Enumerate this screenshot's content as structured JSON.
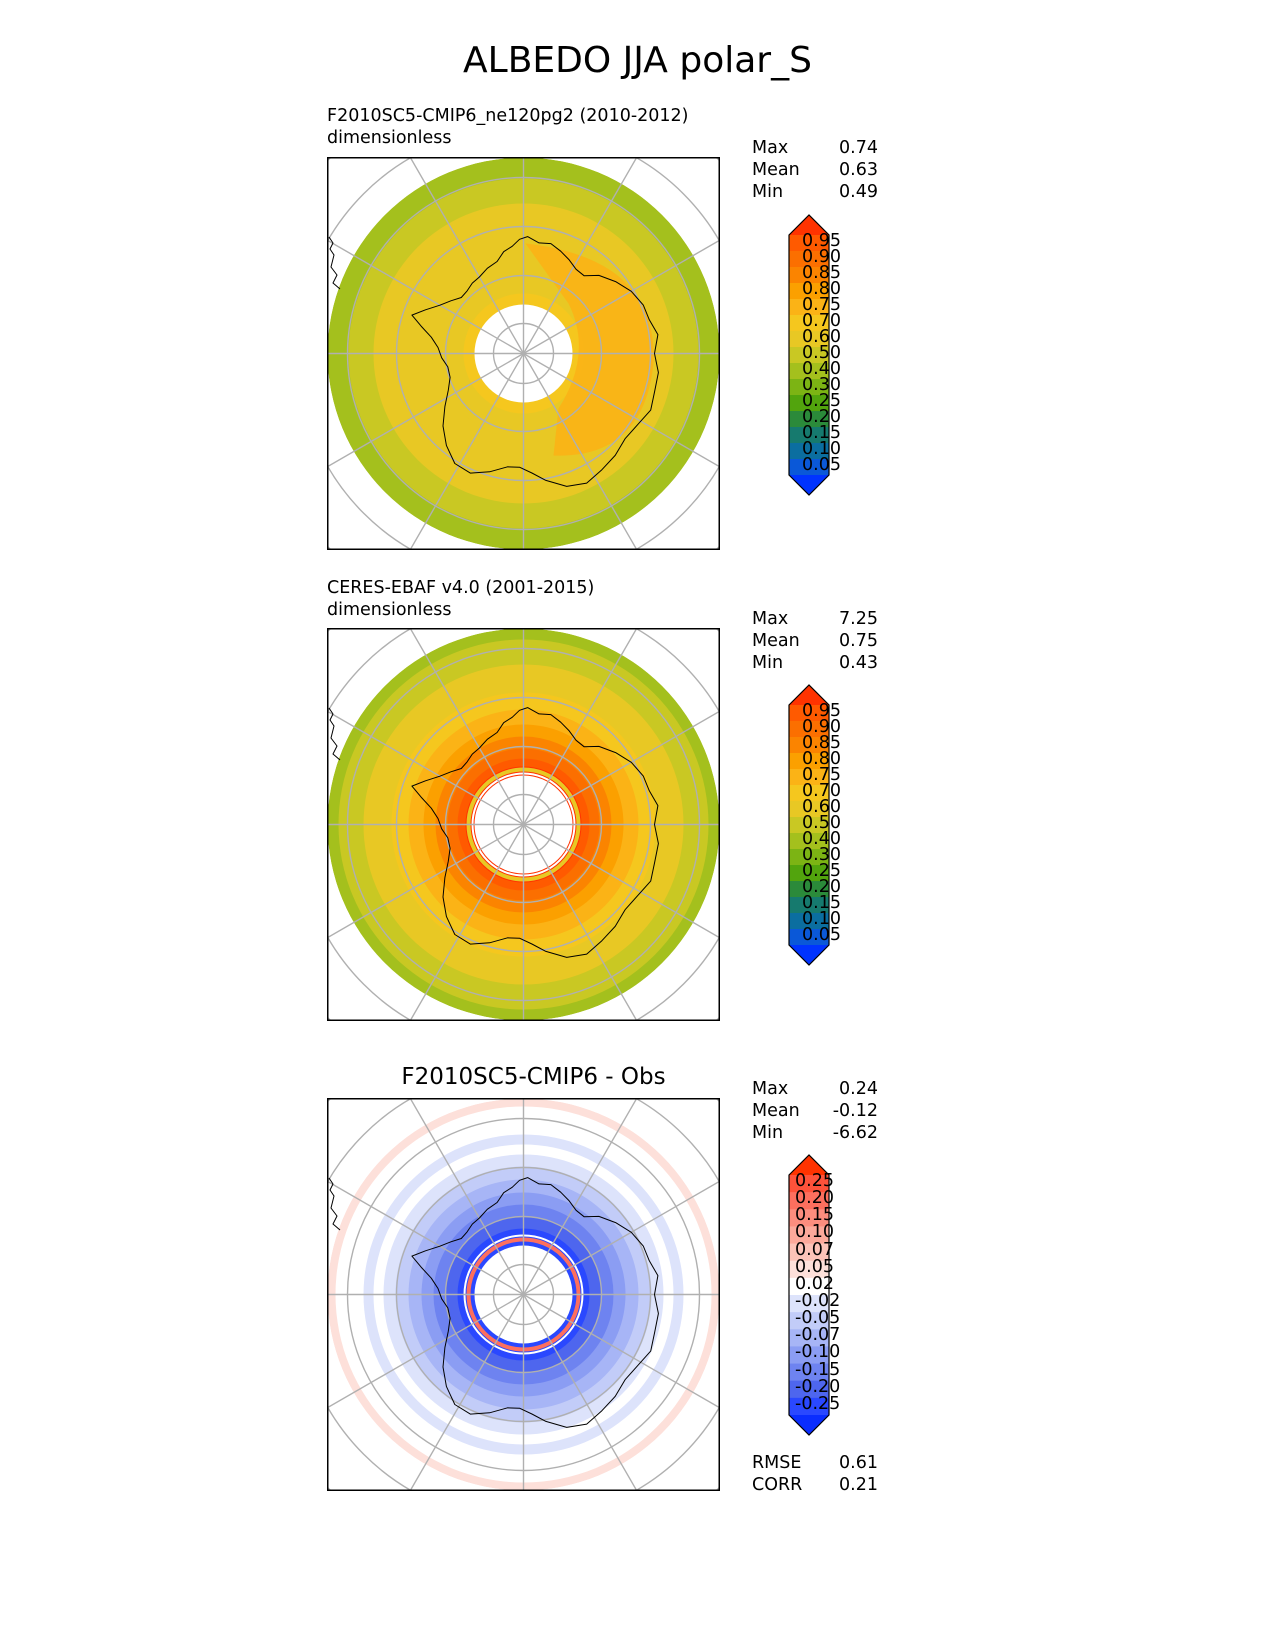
{
  "title": "ALBEDO JJA polar_S",
  "stat_labels": {
    "max": "Max",
    "mean": "Mean",
    "min": "Min",
    "rmse": "RMSE",
    "corr": "CORR"
  },
  "panels": [
    {
      "title_line1": "F2010SC5-CMIP6_ne120pg2 (2010-2012)",
      "title_line2": "dimensionless",
      "max": "0.74",
      "mean": "0.63",
      "min": "0.49",
      "colorbar": {
        "ticks": [
          "0.95",
          "0.90",
          "0.85",
          "0.80",
          "0.75",
          "0.70",
          "0.60",
          "0.50",
          "0.40",
          "0.30",
          "0.25",
          "0.20",
          "0.15",
          "0.10",
          "0.05"
        ],
        "colors": [
          "#ff3300",
          "#ff5a00",
          "#fb6f00",
          "#fb8400",
          "#fba000",
          "#fbb316",
          "#f5c71e",
          "#e8c824",
          "#c9c823",
          "#a4c01d",
          "#7cb414",
          "#52a40d",
          "#2b8a3a",
          "#167a6e",
          "#0b6ea0",
          "#0a58d8",
          "#0033ff"
        ]
      }
    },
    {
      "title_line1": "CERES-EBAF v4.0 (2001-2015)",
      "title_line2": "dimensionless",
      "max": "7.25",
      "mean": "0.75",
      "min": "0.43",
      "colorbar": {
        "ticks": [
          "0.95",
          "0.90",
          "0.85",
          "0.80",
          "0.75",
          "0.70",
          "0.60",
          "0.50",
          "0.40",
          "0.30",
          "0.25",
          "0.20",
          "0.15",
          "0.10",
          "0.05"
        ],
        "colors": [
          "#ff3300",
          "#ff5a00",
          "#fb6f00",
          "#fb8400",
          "#fba000",
          "#fbb316",
          "#f5c71e",
          "#e8c824",
          "#c9c823",
          "#a4c01d",
          "#7cb414",
          "#52a40d",
          "#2b8a3a",
          "#167a6e",
          "#0b6ea0",
          "#0a58d8",
          "#0033ff"
        ]
      }
    },
    {
      "title": "F2010SC5-CMIP6 - Obs",
      "max": "0.24",
      "mean": "-0.12",
      "min": "-6.62",
      "rmse": "0.61",
      "corr": "0.21",
      "colorbar": {
        "ticks": [
          "0.25",
          "0.20",
          "0.15",
          "0.10",
          "0.07",
          "0.05",
          "0.02",
          "-0.02",
          "-0.05",
          "-0.07",
          "-0.10",
          "-0.15",
          "-0.20",
          "-0.25"
        ],
        "colors": [
          "#ff3300",
          "#fe523a",
          "#fd6f5e",
          "#fc8d7e",
          "#fca99b",
          "#fcc3b8",
          "#fde0da",
          "#ffffff",
          "#dde3fb",
          "#c2ccf8",
          "#a7b5f6",
          "#8b9df3",
          "#6e83f0",
          "#4e66ee",
          "#2a48ff",
          "#0a2dff"
        ]
      }
    }
  ],
  "chart_data": [
    {
      "type": "heatmap",
      "projection": "south polar stereographic",
      "title": "F2010SC5-CMIP6_ne120pg2 (2010-2012)",
      "units": "dimensionless",
      "stats": {
        "max": 0.74,
        "mean": 0.63,
        "min": 0.49
      },
      "colorbar_levels": [
        0.05,
        0.1,
        0.15,
        0.2,
        0.25,
        0.3,
        0.4,
        0.5,
        0.6,
        0.7,
        0.75,
        0.8,
        0.85,
        0.9,
        0.95
      ],
      "colorbar_extend": "both",
      "field_description": "pale yellow-green field ~0.50-0.60 over ocean, ~0.60-0.70 over inner region and continent, ~0.70-0.75 over East Antarctica; polar hole has no data"
    },
    {
      "type": "heatmap",
      "projection": "south polar stereographic",
      "title": "CERES-EBAF v4.0 (2001-2015)",
      "units": "dimensionless",
      "stats": {
        "max": 7.25,
        "mean": 0.75,
        "min": 0.43
      },
      "colorbar_levels": [
        0.05,
        0.1,
        0.15,
        0.2,
        0.25,
        0.3,
        0.4,
        0.5,
        0.6,
        0.7,
        0.75,
        0.8,
        0.85,
        0.9,
        0.95
      ],
      "colorbar_extend": "both",
      "field_description": "concentric gradient from ~0.50 at outer edge to >0.95 near polar hole, with a thin ring artifact around the hole"
    },
    {
      "type": "heatmap",
      "projection": "south polar stereographic",
      "title": "F2010SC5-CMIP6 - Obs",
      "stats": {
        "max": 0.24,
        "mean": -0.12,
        "min": -6.62,
        "rmse": 0.61,
        "corr": 0.21
      },
      "colorbar_levels": [
        -0.25,
        -0.2,
        -0.15,
        -0.1,
        -0.07,
        -0.05,
        -0.02,
        0.02,
        0.05,
        0.07,
        0.1,
        0.15,
        0.2,
        0.25
      ],
      "colorbar_extend": "both",
      "field_description": "mostly negative (blue) differences, strongest (~ -0.25) near polar hole; weak positive (light red) band at outer edge; red/blue ring artifact around hole"
    }
  ]
}
